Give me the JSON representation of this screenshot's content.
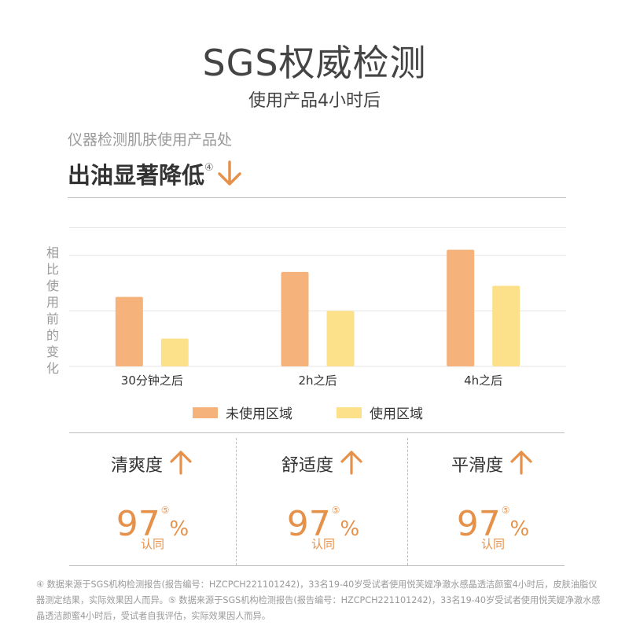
{
  "header": {
    "title": "SGS权威检测",
    "subtitle": "使用产品4小时后",
    "intro": "仪器检测肌肤使用产品处",
    "headline": "出油显著降低",
    "headline_marker": "④"
  },
  "colors": {
    "untreated": "#f5b27a",
    "treated": "#fde08a",
    "accent": "#e6914a",
    "gridline": "#e6e6e6"
  },
  "chart_data": {
    "type": "bar",
    "categories": [
      "30分钟之后",
      "2h之后",
      "4h之后"
    ],
    "series": [
      {
        "name": "未使用区域",
        "values": [
          2.5,
          3.4,
          4.2
        ]
      },
      {
        "name": "使用区域",
        "values": [
          1.0,
          2.0,
          2.9
        ]
      }
    ],
    "ylabel": "相比使用前的变化",
    "ylim": [
      0,
      6
    ],
    "grid": true,
    "legend_position": "bottom"
  },
  "metrics": [
    {
      "label": "清爽度",
      "icon": "up-arrow-icon",
      "value": "97",
      "marker": "⑤",
      "unit": "%",
      "note": "认同"
    },
    {
      "label": "舒适度",
      "icon": "up-arrow-icon",
      "value": "97",
      "marker": "⑤",
      "unit": "%",
      "note": "认同"
    },
    {
      "label": "平滑度",
      "icon": "up-arrow-icon",
      "value": "97",
      "marker": "⑤",
      "unit": "%",
      "note": "认同"
    }
  ],
  "footnote": "④ 数据来源于SGS机构检测报告(报告编号：HZCPCH221101242)，33名19-40岁受试者使用悦芙媞净澈水感晶透洁颜蜜4小时后，皮肤油脂仪器测定结果，实际效果因人而异。⑤ 数据来源于SGS机构检测报告(报告编号：HZCPCH221101242)，33名19-40岁受试者使用悦芙媞净澈水感晶透洁颜蜜4小时后，受试者自我评估，实际效果因人而异。"
}
